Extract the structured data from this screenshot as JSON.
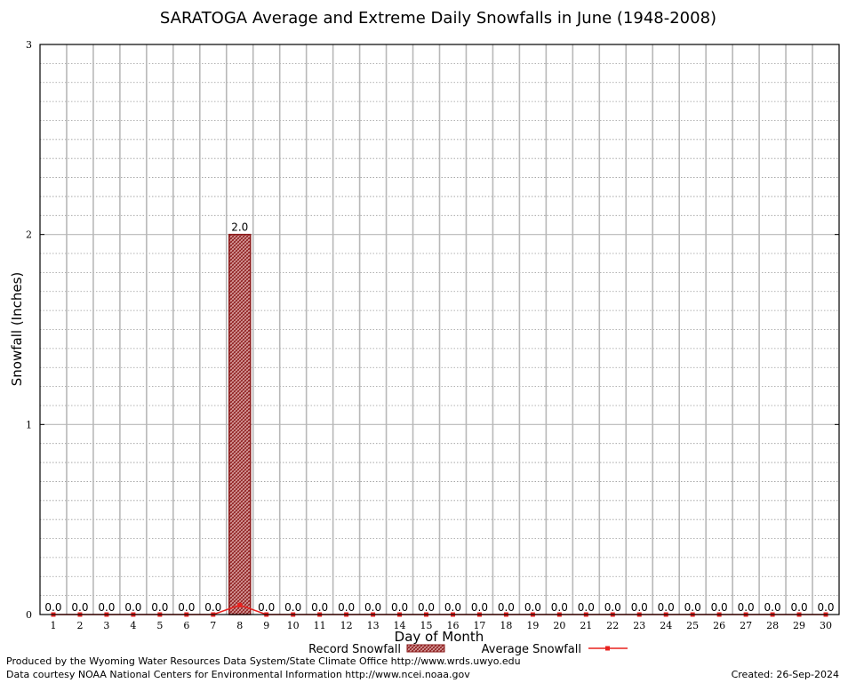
{
  "chart_data": {
    "type": "bar",
    "title": "SARATOGA Average and Extreme Daily Snowfalls in June (1948-2008)",
    "xlabel": "Day of Month",
    "ylabel": "Snowfall (Inches)",
    "ylim": [
      0,
      3
    ],
    "yticks": [
      "0",
      "1",
      "2",
      "3"
    ],
    "grid": true,
    "categories": [
      "1",
      "2",
      "3",
      "4",
      "5",
      "6",
      "7",
      "8",
      "9",
      "10",
      "11",
      "12",
      "13",
      "14",
      "15",
      "16",
      "17",
      "18",
      "19",
      "20",
      "21",
      "22",
      "23",
      "24",
      "25",
      "26",
      "27",
      "28",
      "29",
      "30"
    ],
    "series": [
      {
        "name": "Record Snowfall",
        "type": "bar",
        "values": [
          0,
          0,
          0,
          0,
          0,
          0,
          0,
          2.0,
          0,
          0,
          0,
          0,
          0,
          0,
          0,
          0,
          0,
          0,
          0,
          0,
          0,
          0,
          0,
          0,
          0,
          0,
          0,
          0,
          0,
          0
        ],
        "labels": [
          "0.0",
          "0.0",
          "0.0",
          "0.0",
          "0.0",
          "0.0",
          "0.0",
          "2.0",
          "0.0",
          "0.0",
          "0.0",
          "0.0",
          "0.0",
          "0.0",
          "0.0",
          "0.0",
          "0.0",
          "0.0",
          "0.0",
          "0.0",
          "0.0",
          "0.0",
          "0.0",
          "0.0",
          "0.0",
          "0.0",
          "0.0",
          "0.0",
          "0.0",
          "0.0"
        ],
        "color": "#b22222"
      },
      {
        "name": "Average Snowfall",
        "type": "line",
        "values": [
          0,
          0,
          0,
          0,
          0,
          0,
          0,
          0.05,
          0,
          0,
          0,
          0,
          0,
          0,
          0,
          0,
          0,
          0,
          0,
          0,
          0,
          0,
          0,
          0,
          0,
          0,
          0,
          0,
          0,
          0
        ],
        "color": "#e8221f"
      }
    ],
    "legend_placement": "bottom"
  },
  "footer": {
    "produced_by": "Produced by the Wyoming Water Resources Data System/State Climate Office http://www.wrds.uwyo.edu",
    "data_courtesy": "Data courtesy NOAA National Centers for Environmental Information http://www.ncei.noaa.gov",
    "created": "Created:  26-Sep-2024"
  }
}
